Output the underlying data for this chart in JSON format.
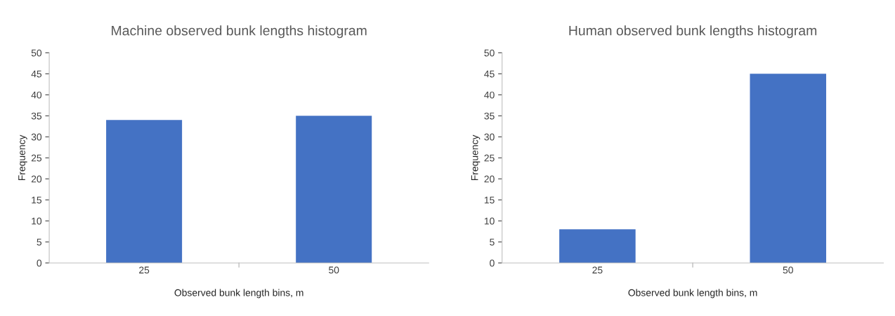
{
  "chart_data": [
    {
      "type": "bar",
      "title": "Machine observed bunk lengths histogram",
      "xlabel": "Observed bunk length bins, m",
      "ylabel": "Frequency",
      "categories": [
        "25",
        "50"
      ],
      "values": [
        34,
        35
      ],
      "color": "#4472c4",
      "ylim": [
        0,
        50
      ],
      "yticks": [
        0,
        5,
        10,
        15,
        20,
        25,
        30,
        35,
        40,
        45,
        50
      ],
      "grid": false,
      "legend": false
    },
    {
      "type": "bar",
      "title": "Human observed bunk lengths histogram",
      "xlabel": "Observed bunk length bins, m",
      "ylabel": "Frequency",
      "categories": [
        "25",
        "50"
      ],
      "values": [
        8,
        45
      ],
      "color": "#4472c4",
      "ylim": [
        0,
        50
      ],
      "yticks": [
        0,
        5,
        10,
        15,
        20,
        25,
        30,
        35,
        40,
        45,
        50
      ],
      "grid": false,
      "legend": false
    }
  ]
}
